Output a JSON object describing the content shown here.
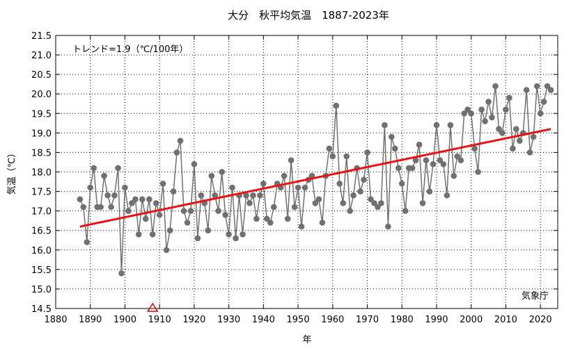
{
  "chart_data": {
    "type": "line",
    "title": "大分　秋平均気温　1887-2023年",
    "xlabel": "年",
    "ylabel": "気温（℃）",
    "trend_text": "トレンド=1.9（℃/100年）",
    "source": "気象庁",
    "xlim": [
      1880,
      2025
    ],
    "ylim": [
      14.5,
      21.5
    ],
    "x_ticks": [
      1880,
      1890,
      1900,
      1910,
      1920,
      1930,
      1940,
      1950,
      1960,
      1970,
      1980,
      1990,
      2000,
      2010,
      2020
    ],
    "y_ticks": [
      14.5,
      15.0,
      15.5,
      16.0,
      16.5,
      17.0,
      17.5,
      18.0,
      18.5,
      19.0,
      19.5,
      20.0,
      20.5,
      21.0,
      21.5
    ],
    "x_tick_labels": [
      "1880",
      "1890",
      "1900",
      "1910",
      "1920",
      "1930",
      "1940",
      "1950",
      "1960",
      "1970",
      "1980",
      "1990",
      "2000",
      "2010",
      "2020"
    ],
    "y_tick_labels": [
      "14.5",
      "15.0",
      "15.5",
      "16.0",
      "16.5",
      "17.0",
      "17.5",
      "18.0",
      "18.5",
      "19.0",
      "19.5",
      "20.0",
      "20.5",
      "21.0",
      "21.5"
    ],
    "grid": true,
    "series": [
      {
        "color": "#707070",
        "x": [
          1887,
          1888,
          1889,
          1890,
          1891,
          1892,
          1893,
          1894,
          1895,
          1896,
          1897,
          1898,
          1899,
          1900,
          1901,
          1902,
          1903,
          1904,
          1905,
          1906,
          1907,
          1908,
          1909,
          1910,
          1911,
          1912,
          1913,
          1914,
          1915,
          1916,
          1917,
          1918,
          1919,
          1920,
          1921,
          1922,
          1923,
          1924,
          1925,
          1926,
          1927,
          1928,
          1929,
          1930,
          1931,
          1932,
          1933,
          1934,
          1935,
          1936,
          1937,
          1938,
          1939,
          1940,
          1941,
          1942,
          1943,
          1944,
          1945,
          1946,
          1947,
          1948,
          1949,
          1950,
          1951,
          1952,
          1953,
          1954,
          1955,
          1956,
          1957,
          1958,
          1959,
          1960,
          1961,
          1962,
          1963,
          1964,
          1965,
          1966,
          1967,
          1968,
          1969,
          1970,
          1971,
          1972,
          1973,
          1974,
          1975,
          1976,
          1977,
          1978,
          1979,
          1980,
          1981,
          1982,
          1983,
          1984,
          1985,
          1986,
          1987,
          1988,
          1989,
          1990,
          1991,
          1992,
          1993,
          1994,
          1995,
          1996,
          1997,
          1998,
          1999,
          2000,
          2001,
          2002,
          2003,
          2004,
          2005,
          2006,
          2007,
          2008,
          2009,
          2010,
          2011,
          2012,
          2013,
          2014,
          2015,
          2016,
          2017,
          2018,
          2019,
          2020,
          2021,
          2022,
          2023
        ],
        "y": [
          17.3,
          17.1,
          16.2,
          17.6,
          18.1,
          17.1,
          17.1,
          17.9,
          17.4,
          17.1,
          17.4,
          18.1,
          15.4,
          17.6,
          17.0,
          17.2,
          17.3,
          16.4,
          17.3,
          16.8,
          17.3,
          16.4,
          17.2,
          16.9,
          17.7,
          16.0,
          16.5,
          17.5,
          18.5,
          18.8,
          17.0,
          16.7,
          17.0,
          18.2,
          16.3,
          17.4,
          17.2,
          16.5,
          17.9,
          17.4,
          17.0,
          18.0,
          16.9,
          16.4,
          17.6,
          16.3,
          17.4,
          16.4,
          17.4,
          17.2,
          17.4,
          16.8,
          17.4,
          17.7,
          16.8,
          16.7,
          17.1,
          17.7,
          17.6,
          17.9,
          16.8,
          18.3,
          17.1,
          17.6,
          16.6,
          17.6,
          17.8,
          17.9,
          17.2,
          17.3,
          16.7,
          17.9,
          18.6,
          18.4,
          19.7,
          17.7,
          17.2,
          18.4,
          17.0,
          17.4,
          18.1,
          17.5,
          17.8,
          18.5,
          17.3,
          17.2,
          17.1,
          17.2,
          19.2,
          16.6,
          18.9,
          18.6,
          18.1,
          17.7,
          17.0,
          18.1,
          18.1,
          18.3,
          18.7,
          17.2,
          18.3,
          17.5,
          18.2,
          19.2,
          18.3,
          18.2,
          17.4,
          19.2,
          17.9,
          18.4,
          18.3,
          19.5,
          19.6,
          19.5,
          18.6,
          18.0,
          19.6,
          19.3,
          19.8,
          19.4,
          20.2,
          19.1,
          19.0,
          19.6,
          19.9,
          18.6,
          19.1,
          18.8,
          19.0,
          20.1,
          18.5,
          18.9,
          20.2,
          19.5,
          19.8,
          20.2,
          20.1
        ]
      }
    ],
    "trend": {
      "color": "#ee1111",
      "x": [
        1887,
        2023
      ],
      "y": [
        16.6,
        19.1
      ]
    },
    "marker": {
      "year": 1908,
      "symbol": "triangle",
      "color": "#dd0000"
    }
  }
}
